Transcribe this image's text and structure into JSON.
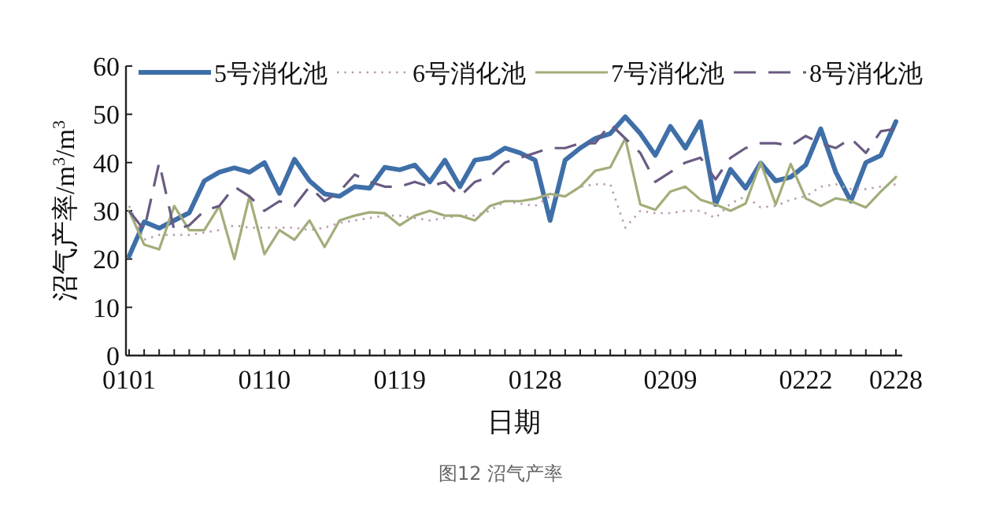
{
  "chart_data": {
    "type": "line",
    "xlabel": "日期",
    "ylabel": "沼气产率/m$^{3}$/m$^{3}$",
    "annotations": [
      "图12 沼气产率"
    ],
    "categories": [
      "0101",
      null,
      null,
      null,
      null,
      null,
      null,
      null,
      null,
      "0110",
      null,
      null,
      null,
      null,
      null,
      null,
      null,
      null,
      "0119",
      null,
      null,
      null,
      null,
      null,
      null,
      null,
      null,
      "0128",
      null,
      null,
      null,
      null,
      null,
      null,
      null,
      null,
      "0209",
      null,
      null,
      null,
      null,
      null,
      null,
      null,
      null,
      "0222",
      null,
      null,
      null,
      null,
      null,
      "0228"
    ],
    "ylim": [
      0,
      60
    ],
    "yticks": [
      0,
      10,
      20,
      30,
      40,
      50,
      60
    ],
    "grid": false,
    "legend": "top",
    "marker": "none",
    "series": [
      {
        "name": "5号消化池",
        "color": "#3f6fa8",
        "line_style": "solid",
        "values": [
          20.6,
          27.7,
          26.4,
          28,
          29.6,
          36.2,
          38,
          38.9,
          38,
          40,
          33.6,
          40.7,
          36.2,
          33.5,
          33,
          35,
          34.7,
          39,
          38.5,
          39.5,
          36,
          40.5,
          35,
          40.5,
          41,
          43,
          42,
          40.5,
          28,
          40.5,
          43,
          45,
          46,
          49.5,
          46,
          41.5,
          47.5,
          43,
          48.5,
          31.3,
          38.6,
          34.7,
          39.9,
          36.2,
          37,
          39.5,
          47,
          38,
          32,
          40,
          41.5,
          48.5
        ]
      },
      {
        "name": "6号消化池",
        "color": "#b89aae",
        "line_style": "dotted",
        "values": [
          31,
          24,
          25,
          25,
          25,
          25.5,
          26,
          27,
          26.5,
          26.5,
          26.5,
          26.5,
          26,
          26.5,
          27.5,
          28,
          28.5,
          29,
          29,
          28.5,
          28,
          28.5,
          29,
          29,
          30,
          32,
          31.5,
          31,
          33,
          33,
          35,
          35.5,
          35.5,
          26.5,
          30,
          29.5,
          29.5,
          30,
          30,
          28.5,
          31.5,
          33,
          30.7,
          31,
          32.3,
          33,
          35,
          35.5,
          34.5,
          34.5,
          35,
          35.5
        ]
      },
      {
        "name": "7号消化池",
        "color": "#a2ad7a",
        "line_style": "solid",
        "values": [
          30,
          23,
          22,
          31,
          26,
          26,
          31,
          20,
          33,
          21,
          26,
          24,
          28,
          22.5,
          28,
          29,
          29.7,
          29.5,
          27,
          29,
          30,
          29,
          29,
          28,
          31,
          32,
          32,
          32.5,
          33.5,
          33,
          35,
          38.3,
          39,
          45,
          31.3,
          30.2,
          34,
          35,
          32.3,
          31.3,
          30,
          31.5,
          40,
          31.3,
          39.7,
          32.6,
          31,
          32.6,
          32,
          30.7,
          34,
          37
        ]
      },
      {
        "name": "8号消化池",
        "color": "#6a5a82",
        "line_style": "dashed",
        "values": [
          30,
          26,
          40,
          26,
          27,
          30,
          31,
          35,
          33,
          30,
          32,
          31,
          35,
          32,
          34,
          37.5,
          36,
          35,
          35,
          36,
          35,
          36,
          33,
          36,
          37,
          40,
          41,
          42,
          43,
          43,
          44,
          44,
          48,
          45,
          42,
          36,
          38,
          40,
          41,
          36.5,
          41,
          43,
          44,
          44,
          43.5,
          45.5,
          44,
          43,
          45,
          42,
          46.5,
          47
        ]
      }
    ]
  }
}
